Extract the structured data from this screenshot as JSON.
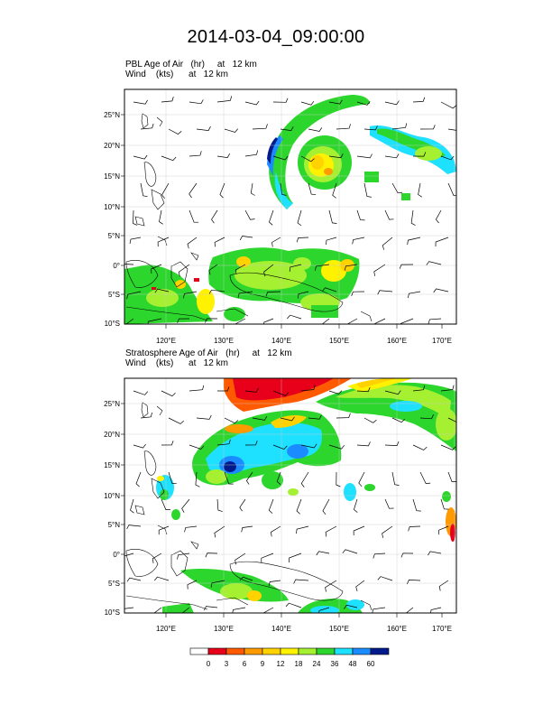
{
  "title": "2014-03-04_09:00:00",
  "panels": [
    {
      "id": "pbl",
      "field_line": "PBL Age of Air   (hr)     at   12 km",
      "wind_line": "Wind    (kts)      at   12 km",
      "lat_ticks": [
        "25°N",
        "20°N",
        "15°N",
        "10°N",
        "5°N",
        "0°",
        "5°S",
        "10°S"
      ],
      "lon_ticks": [
        "120°E",
        "130°E",
        "140°E",
        "150°E",
        "160°E",
        "170°E"
      ]
    },
    {
      "id": "strat",
      "field_line": "Stratosphere Age of Air   (hr)     at   12 km",
      "wind_line": "Wind    (kts)      at   12 km",
      "lat_ticks": [
        "25°N",
        "20°N",
        "15°N",
        "10°N",
        "5°N",
        "0°",
        "5°S",
        "10°S"
      ],
      "lon_ticks": [
        "120°E",
        "130°E",
        "140°E",
        "150°E",
        "160°E",
        "170°E"
      ]
    }
  ],
  "colorbar": {
    "labels": [
      "0",
      "3",
      "6",
      "9",
      "12",
      "18",
      "24",
      "36",
      "48",
      "60"
    ],
    "colors": [
      "#ffffff",
      "#e8001a",
      "#ff5a00",
      "#ff9a00",
      "#ffd200",
      "#fff200",
      "#a6f032",
      "#2cd62c",
      "#1ee0ff",
      "#1a8cff",
      "#001a8c"
    ]
  }
}
